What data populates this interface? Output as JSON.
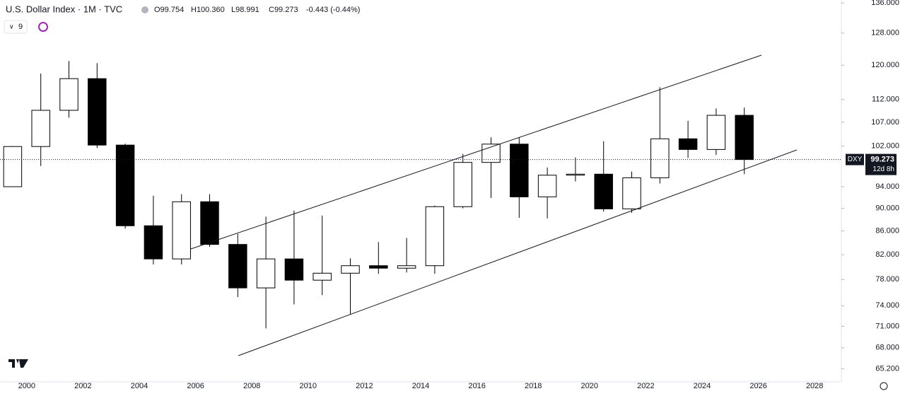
{
  "header": {
    "title": "U.S. Dollar Index · 1M · TVC",
    "open": "O99.754",
    "high": "H100.360",
    "low": "L98.991",
    "close": "C99.273",
    "change": "-0.443 (-0.44%)",
    "interval_selector": "9"
  },
  "price_label": {
    "symbol": "DXY",
    "countdown": "12d 8h"
  },
  "chart_data": {
    "type": "candlestick",
    "log_scale": true,
    "x": [
      1999,
      2000,
      2001,
      2002,
      2003,
      2004,
      2005,
      2006,
      2007,
      2008,
      2009,
      2010,
      2011,
      2012,
      2013,
      2014,
      2015,
      2016,
      2017,
      2018,
      2019,
      2020,
      2021,
      2022,
      2023,
      2024,
      2025
    ],
    "open": [
      94,
      101.9,
      109.6,
      116.8,
      102.2,
      86.9,
      81.3,
      91.2,
      83.7,
      76.7,
      81.3,
      77.9,
      79,
      80.2,
      79.8,
      80.2,
      90.3,
      98.7,
      102.4,
      92.1,
      96.2,
      96.4,
      89.9,
      95.7,
      103.5,
      101.3,
      108.5
    ],
    "high": [
      102,
      118,
      121,
      120.5,
      102.5,
      92.3,
      92.6,
      92.6,
      85.5,
      88.5,
      89.6,
      88.7,
      81.4,
      84.1,
      84.8,
      90.5,
      100.4,
      103.8,
      103.8,
      97.7,
      99.7,
      103,
      96.9,
      114.8,
      107.3,
      110,
      110.2
    ],
    "low": [
      94,
      98,
      108,
      101.6,
      86.4,
      80.4,
      80.4,
      83.3,
      75.3,
      70.7,
      74.2,
      75.6,
      72.7,
      78.9,
      79.1,
      78.9,
      90,
      91.9,
      88.3,
      88.2,
      95,
      89.4,
      89.2,
      94.6,
      99.6,
      100.2,
      96.4
    ],
    "close": [
      101.9,
      109.6,
      116.8,
      102.2,
      86.9,
      81.3,
      91.2,
      83.7,
      76.7,
      81.3,
      77.9,
      79,
      80.2,
      79.8,
      80.2,
      90.3,
      98.7,
      102.4,
      92.1,
      96.2,
      96.4,
      89.9,
      95.7,
      103.5,
      101.3,
      108.5,
      99.273
    ],
    "up_color": "#ffffff",
    "down_color": "#000000",
    "outline_color": "#000000",
    "xlim": [
      1999.05,
      2028.95
    ],
    "xticks": [
      2000,
      2002,
      2004,
      2006,
      2008,
      2010,
      2012,
      2014,
      2016,
      2018,
      2020,
      2022,
      2024,
      2026,
      2028
    ],
    "ylim": [
      63.5,
      136.8
    ],
    "yticks": [
      {
        "value": 136,
        "label": "136.000"
      },
      {
        "value": 128,
        "label": "128.000"
      },
      {
        "value": 120,
        "label": "120.000"
      },
      {
        "value": 112,
        "label": "112.000"
      },
      {
        "value": 107,
        "label": "107.000"
      },
      {
        "value": 102,
        "label": "102.000"
      },
      {
        "value": 94,
        "label": "94.000"
      },
      {
        "value": 90,
        "label": "90.000"
      },
      {
        "value": 86,
        "label": "86.000"
      },
      {
        "value": 82,
        "label": "82.000"
      },
      {
        "value": 78,
        "label": "78.000"
      },
      {
        "value": 74,
        "label": "74.000"
      },
      {
        "value": 71,
        "label": "71.000"
      },
      {
        "value": 68,
        "label": "68.000"
      },
      {
        "value": 65.2,
        "label": "65.200"
      }
    ]
  }
}
